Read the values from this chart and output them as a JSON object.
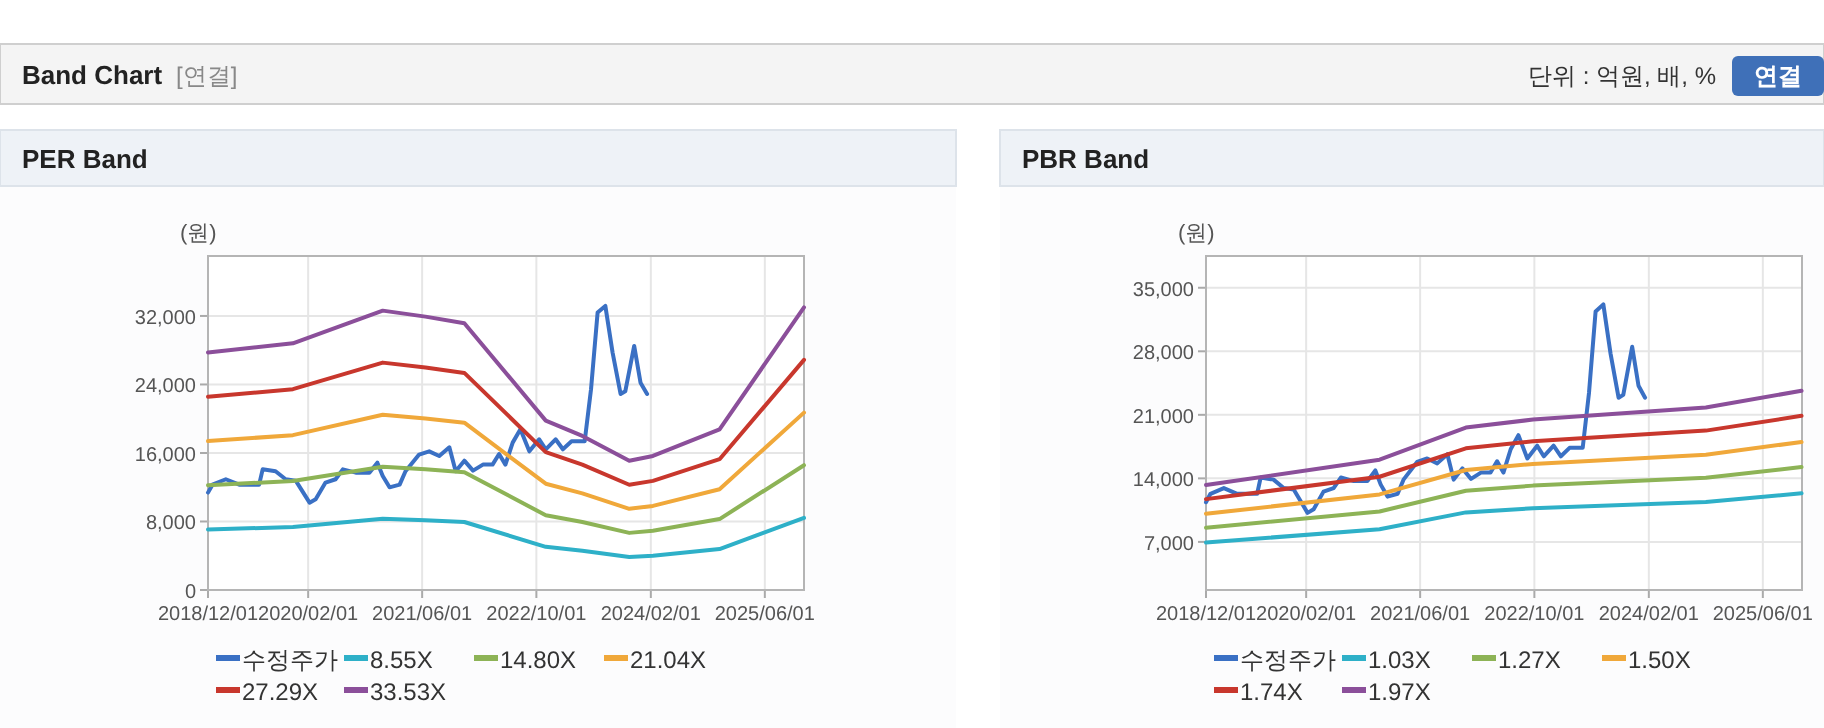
{
  "chart_data": [
    {
      "type": "line",
      "title": "PER Band",
      "ylabel": "(원)",
      "annotations": [
        "Band Chart",
        "[연결]",
        "단위 : 억원, 배, %",
        "연결"
      ],
      "xlim": [
        "2018-12-01",
        "2025-11-15"
      ],
      "xticks": [
        {
          "value": "2018-12-01",
          "label": "2018/12/01"
        },
        {
          "value": "2020-02-01",
          "label": "2020/02/01"
        },
        {
          "value": "2021-06-01",
          "label": "2021/06/01"
        },
        {
          "value": "2022-10-01",
          "label": "2022/10/01"
        },
        {
          "value": "2024-02-01",
          "label": "2024/02/01"
        },
        {
          "value": "2025-06-01",
          "label": "2025/06/01"
        }
      ],
      "ylim": [
        0,
        39000
      ],
      "yticks": [
        0,
        {
          "value": 8000,
          "label": "8,000"
        },
        {
          "value": 16000,
          "label": "16,000"
        },
        {
          "value": 24000,
          "label": "24,000"
        },
        {
          "value": 32000,
          "label": "32,000"
        }
      ],
      "grid": true,
      "legend": "bottom",
      "series": [
        {
          "name": "수정주가",
          "color": "#3a70c4",
          "x": [
            "2018-12-01",
            "2018-12-20",
            "2019-02-15",
            "2019-04-13",
            "2019-07-07",
            "2019-07-22",
            "2019-09-15",
            "2019-10-28",
            "2019-12-10",
            "2020-02-07",
            "2020-03-04",
            "2020-04-15",
            "2020-05-28",
            "2020-06-28",
            "2020-08-22",
            "2020-10-19",
            "2020-11-22",
            "2020-12-15",
            "2021-01-13",
            "2021-02-25",
            "2021-03-22",
            "2021-05-19",
            "2021-07-01",
            "2021-08-13",
            "2021-09-25",
            "2021-10-22",
            "2021-11-28",
            "2022-01-04",
            "2022-02-15",
            "2022-03-28",
            "2022-04-25",
            "2022-05-22",
            "2022-06-22",
            "2022-07-25",
            "2022-09-01",
            "2022-10-13",
            "2022-11-10",
            "2022-12-22",
            "2023-01-22",
            "2023-02-28",
            "2023-04-25",
            "2023-05-22",
            "2023-06-19",
            "2023-07-22",
            "2023-08-22",
            "2023-09-25",
            "2023-10-15",
            "2023-11-22",
            "2023-12-19",
            "2024-01-16"
          ],
          "values": [
            11370,
            12300,
            12930,
            12300,
            12300,
            14090,
            13860,
            12930,
            12770,
            10200,
            10590,
            12540,
            12930,
            14090,
            13700,
            13700,
            14870,
            13310,
            11990,
            12300,
            13860,
            15810,
            16190,
            15650,
            16660,
            13860,
            15100,
            13940,
            14640,
            14640,
            15880,
            14640,
            17210,
            18760,
            16190,
            17600,
            16430,
            17600,
            16430,
            17360,
            17360,
            23440,
            32390,
            33170,
            27720,
            22890,
            23200,
            28500,
            24210,
            22890
          ]
        },
        {
          "name": "8.55X",
          "color": "#2eb0c8",
          "x": [
            "2018-12-01",
            "2019-11-28",
            "2020-12-15",
            "2021-06-15",
            "2021-11-28",
            "2022-11-10",
            "2023-04-15",
            "2023-11-01",
            "2024-02-10",
            "2024-11-20",
            "2025-11-15"
          ],
          "values": [
            7070,
            7350,
            8320,
            8140,
            7940,
            5040,
            4590,
            3850,
            3990,
            4780,
            8420
          ]
        },
        {
          "name": "14.80X",
          "color": "#8db356",
          "x": [
            "2018-12-01",
            "2019-11-28",
            "2020-12-15",
            "2021-06-15",
            "2021-11-28",
            "2022-11-10",
            "2023-04-15",
            "2023-11-01",
            "2024-02-10",
            "2024-11-20",
            "2025-11-15"
          ],
          "values": [
            12240,
            12720,
            14400,
            14090,
            13750,
            8730,
            7940,
            6670,
            6910,
            8280,
            14570
          ]
        },
        {
          "name": "21.04X",
          "color": "#f0a83a",
          "x": [
            "2018-12-01",
            "2019-11-28",
            "2020-12-15",
            "2021-06-15",
            "2021-11-28",
            "2022-11-10",
            "2023-04-15",
            "2023-11-01",
            "2024-02-10",
            "2024-11-20",
            "2025-11-15"
          ],
          "values": [
            17390,
            18080,
            20470,
            20030,
            19540,
            12410,
            11290,
            9480,
            9820,
            11770,
            20710
          ]
        },
        {
          "name": "27.29X",
          "color": "#c8372d",
          "x": [
            "2018-12-01",
            "2019-11-28",
            "2020-12-15",
            "2021-06-15",
            "2021-11-28",
            "2022-11-10",
            "2023-04-15",
            "2023-11-01",
            "2024-02-10",
            "2024-11-20",
            "2025-11-15"
          ],
          "values": [
            22560,
            23450,
            26550,
            25980,
            25350,
            16100,
            14640,
            12290,
            12740,
            15270,
            26870
          ]
        },
        {
          "name": "33.53X",
          "color": "#8b4f9a",
          "x": [
            "2018-12-01",
            "2019-11-28",
            "2020-12-15",
            "2021-06-15",
            "2021-11-28",
            "2022-11-10",
            "2023-04-15",
            "2023-11-01",
            "2024-02-10",
            "2024-11-20",
            "2025-11-15"
          ],
          "values": [
            27720,
            28810,
            32620,
            31920,
            31140,
            19780,
            17990,
            15100,
            15650,
            18760,
            33010
          ]
        }
      ]
    },
    {
      "type": "line",
      "title": "PBR Band",
      "ylabel": "(원)",
      "xlim": [
        "2018-12-01",
        "2025-11-15"
      ],
      "xticks": [
        {
          "value": "2018-12-01",
          "label": "2018/12/01"
        },
        {
          "value": "2020-02-01",
          "label": "2020/02/01"
        },
        {
          "value": "2021-06-01",
          "label": "2021/06/01"
        },
        {
          "value": "2022-10-01",
          "label": "2022/10/01"
        },
        {
          "value": "2024-02-01",
          "label": "2024/02/01"
        },
        {
          "value": "2025-06-01",
          "label": "2025/06/01"
        }
      ],
      "ylim": [
        1700,
        38500
      ],
      "yticks": [
        {
          "value": 7000,
          "label": "7,000"
        },
        {
          "value": 14000,
          "label": "14,000"
        },
        {
          "value": 21000,
          "label": "21,000"
        },
        {
          "value": 28000,
          "label": "28,000"
        },
        {
          "value": 35000,
          "label": "35,000"
        }
      ],
      "grid": true,
      "legend": "bottom",
      "series": [
        {
          "name": "수정주가",
          "color": "#3a70c4",
          "x": [
            "2018-12-01",
            "2018-12-20",
            "2019-02-15",
            "2019-04-13",
            "2019-07-07",
            "2019-07-22",
            "2019-09-15",
            "2019-10-28",
            "2019-12-10",
            "2020-02-07",
            "2020-03-04",
            "2020-04-15",
            "2020-05-28",
            "2020-06-28",
            "2020-08-22",
            "2020-10-19",
            "2020-11-22",
            "2020-12-15",
            "2021-01-13",
            "2021-02-25",
            "2021-03-22",
            "2021-05-19",
            "2021-07-01",
            "2021-08-13",
            "2021-09-25",
            "2021-10-22",
            "2021-11-28",
            "2022-01-04",
            "2022-02-15",
            "2022-03-28",
            "2022-04-25",
            "2022-05-22",
            "2022-06-22",
            "2022-07-25",
            "2022-09-01",
            "2022-10-13",
            "2022-11-10",
            "2022-12-22",
            "2023-01-22",
            "2023-02-28",
            "2023-04-25",
            "2023-05-22",
            "2023-06-19",
            "2023-07-22",
            "2023-08-22",
            "2023-09-25",
            "2023-10-15",
            "2023-11-22",
            "2023-12-19",
            "2024-01-16"
          ],
          "values": [
            11370,
            12300,
            12930,
            12300,
            12300,
            14090,
            13860,
            12930,
            12770,
            10200,
            10590,
            12540,
            12930,
            14090,
            13700,
            13700,
            14870,
            13310,
            11990,
            12300,
            13860,
            15810,
            16190,
            15650,
            16660,
            13860,
            15100,
            13940,
            14640,
            14640,
            15880,
            14640,
            17210,
            18760,
            16190,
            17600,
            16430,
            17600,
            16430,
            17360,
            17360,
            23440,
            32390,
            33170,
            27720,
            22890,
            23200,
            28500,
            24210,
            22890
          ]
        },
        {
          "name": "1.03X",
          "color": "#2eb0c8",
          "x": [
            "2018-12-01",
            "2020-12-10",
            "2021-12-13",
            "2022-09-25",
            "2024-10-01",
            "2025-11-13"
          ],
          "values": [
            6930,
            8400,
            10250,
            10710,
            11400,
            12360
          ]
        },
        {
          "name": "1.27X",
          "color": "#8db356",
          "x": [
            "2018-12-01",
            "2020-12-10",
            "2021-12-13",
            "2022-09-25",
            "2024-10-01",
            "2025-11-13"
          ],
          "values": [
            8550,
            10350,
            12640,
            13200,
            14060,
            15250
          ]
        },
        {
          "name": "1.50X",
          "color": "#f0a83a",
          "x": [
            "2018-12-01",
            "2020-12-10",
            "2021-12-13",
            "2022-09-25",
            "2024-10-01",
            "2025-11-13"
          ],
          "values": [
            10100,
            12230,
            14920,
            15590,
            16600,
            18010
          ]
        },
        {
          "name": "1.74X",
          "color": "#c8372d",
          "x": [
            "2018-12-01",
            "2020-12-10",
            "2021-12-13",
            "2022-09-25",
            "2024-10-01",
            "2025-11-13"
          ],
          "values": [
            11710,
            14180,
            17310,
            18090,
            19260,
            20890
          ]
        },
        {
          "name": "1.97X",
          "color": "#8b4f9a",
          "x": [
            "2018-12-01",
            "2020-12-10",
            "2021-12-13",
            "2022-09-25",
            "2024-10-01",
            "2025-11-13"
          ],
          "values": [
            13260,
            16060,
            19600,
            20480,
            21810,
            23650
          ]
        }
      ]
    }
  ]
}
